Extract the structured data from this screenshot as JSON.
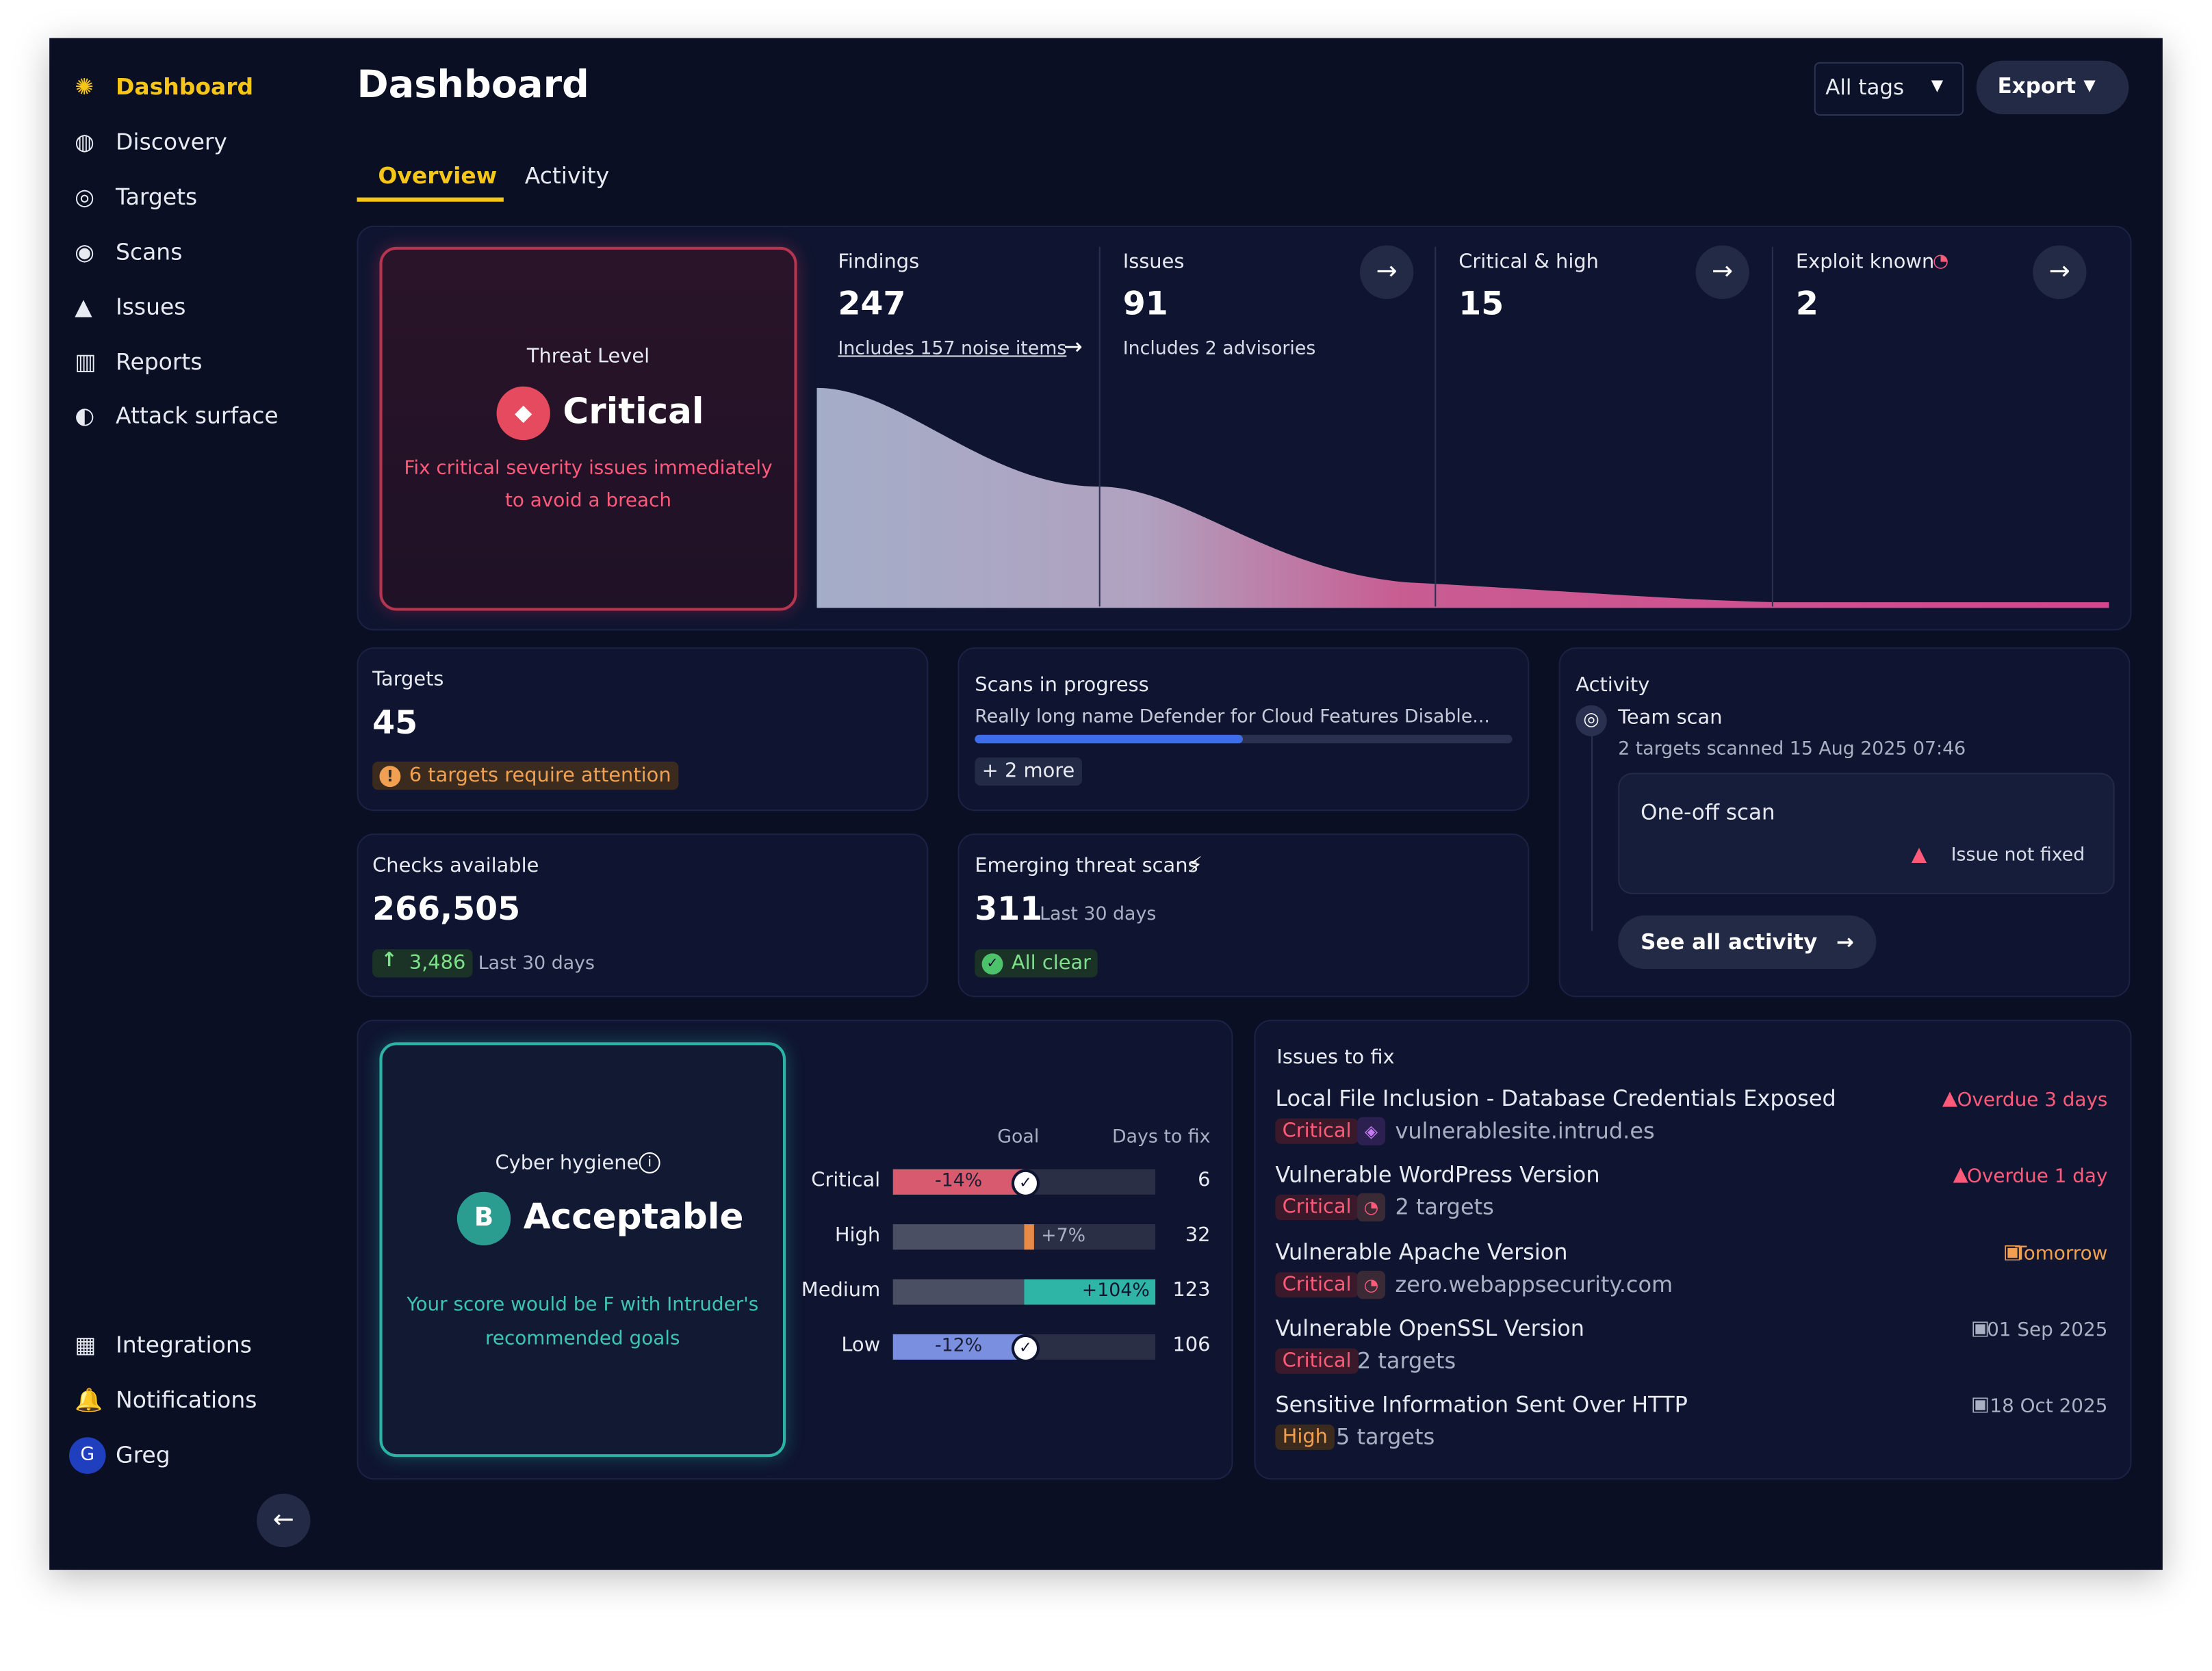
{
  "sidebar": {
    "nav": [
      "Dashboard",
      "Discovery",
      "Targets",
      "Scans",
      "Issues",
      "Reports",
      "Attack surface"
    ],
    "bottom": [
      "Integrations",
      "Notifications"
    ],
    "user": {
      "initial": "G",
      "name": "Greg"
    }
  },
  "header": {
    "title": "Dashboard",
    "tag_filter": "All tags",
    "export": "Export",
    "tabs": [
      "Overview",
      "Activity"
    ]
  },
  "threat": {
    "label": "Threat Level",
    "level": "Critical",
    "message": "Fix critical severity issues immediately to avoid a breach"
  },
  "stats": [
    {
      "label": "Findings",
      "value": 247,
      "note": "Includes 157 noise items"
    },
    {
      "label": "Issues",
      "value": 91,
      "note": "Includes 2 advisories"
    },
    {
      "label": "Critical & high",
      "value": 15
    },
    {
      "label": "Exploit known",
      "value": 2
    }
  ],
  "targets": {
    "label": "Targets",
    "value": 45,
    "alert": "6 targets require attention"
  },
  "scans": {
    "label": "Scans in progress",
    "name": "Really long name Defender for Cloud Features Disable...",
    "more": "+ 2 more"
  },
  "checks": {
    "label": "Checks available",
    "value": "266,505",
    "delta": "3,486",
    "period": "Last 30 days"
  },
  "emerging": {
    "label": "Emerging threat scans",
    "value": 311,
    "period": "Last 30 days",
    "status": "All clear"
  },
  "activity": {
    "label": "Activity",
    "team": "Team scan",
    "team_note": "2 targets scanned 15 Aug 2025 07:46",
    "oneoff": "One-off scan",
    "issue": "Issue not fixed",
    "link": "See all activity"
  },
  "hygiene": {
    "label": "Cyber hygiene",
    "grade": "B",
    "rating": "Acceptable",
    "note": "Your score would be F with Intruder's recommended goals",
    "columns": [
      "Goal",
      "Days to fix"
    ],
    "rows": [
      [
        "Critical",
        "-14%",
        6
      ],
      [
        "High",
        "+7%",
        32
      ],
      [
        "Medium",
        "+104%",
        123
      ],
      [
        "Low",
        "-12%",
        106
      ]
    ]
  },
  "issues": {
    "title": "Issues to fix",
    "items": [
      {
        "name": "Local File Inclusion - Database Credentials Exposed",
        "severity": "Critical",
        "target": "vulnerablesite.intrud.es",
        "due": "Overdue 3 days"
      },
      {
        "name": "Vulnerable WordPress Version",
        "severity": "Critical",
        "target": "2 targets",
        "due": "Overdue 1 day"
      },
      {
        "name": "Vulnerable Apache Version",
        "severity": "Critical",
        "target": "zero.webappsecurity.com",
        "due": "Tomorrow"
      },
      {
        "name": "Vulnerable OpenSSL Version",
        "severity": "Critical",
        "target": "2 targets",
        "due": "01 Sep 2025"
      },
      {
        "name": "Sensitive Information Sent Over HTTP",
        "severity": "High",
        "target": "5 targets",
        "due": "18 Oct 2025"
      }
    ]
  }
}
